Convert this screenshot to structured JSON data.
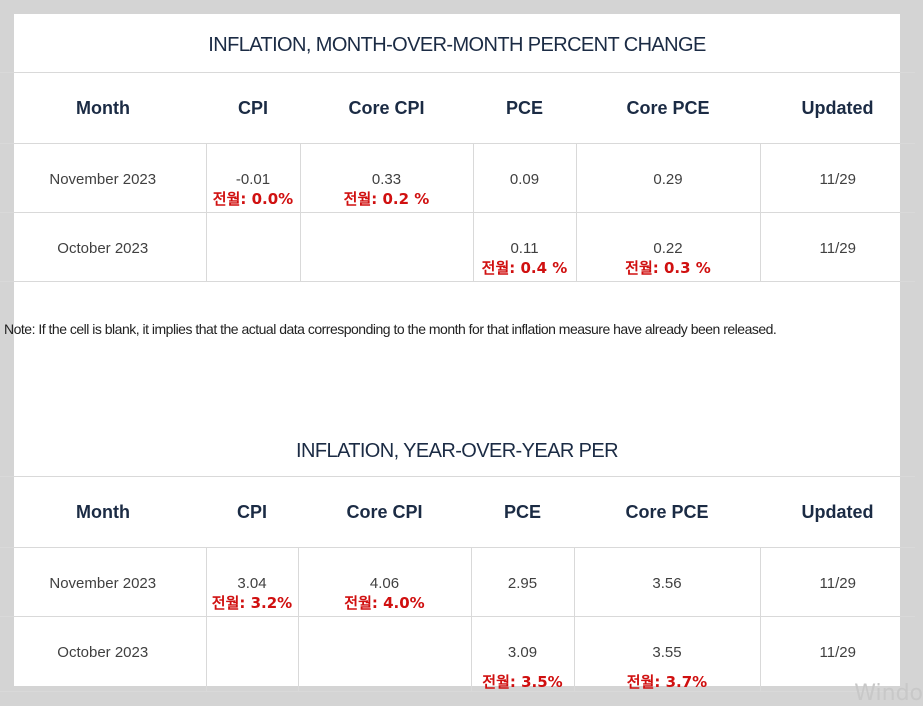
{
  "table1": {
    "title": "INFLATION, MONTH-OVER-MONTH PERCENT CHANGE",
    "headers": [
      "Month",
      "CPI",
      "Core CPI",
      "PCE",
      "Core PCE",
      "Updated"
    ],
    "rows": [
      {
        "month": "November 2023",
        "cpi": "-0.01",
        "cpi_kr": "전월: 0.0%",
        "core_cpi": "0.33",
        "core_cpi_kr": "전월: 0.2 %",
        "pce": "0.09",
        "core_pce": "0.29",
        "updated": "11/29"
      },
      {
        "month": "October 2023",
        "cpi": "",
        "core_cpi": "",
        "pce": "0.11",
        "pce_kr": "전월: 0.4 %",
        "core_pce": "0.22",
        "core_pce_kr": "전월: 0.3 %",
        "updated": "11/29"
      }
    ]
  },
  "note": "Note: If the cell is blank, it implies that the actual data corresponding to the month for that inflation measure have already been released.",
  "table2": {
    "title": "INFLATION, YEAR-OVER-YEAR PER",
    "headers": [
      "Month",
      "CPI",
      "Core CPI",
      "PCE",
      "Core PCE",
      "Updated"
    ],
    "rows": [
      {
        "month": "November 2023",
        "cpi": "3.04",
        "cpi_kr": "전월: 3.2%",
        "core_cpi": "4.06",
        "core_cpi_kr": "전월: 4.0%",
        "pce": "2.95",
        "core_pce": "3.56",
        "updated": "11/29"
      },
      {
        "month": "October 2023",
        "cpi": "",
        "core_cpi": "",
        "pce": "3.09",
        "pce_kr": "전월: 3.5%",
        "core_pce": "3.55",
        "core_pce_kr": "전월: 3.7%",
        "updated": "11/29"
      }
    ]
  },
  "overlay": {
    "windows_fragment": "Windo"
  }
}
